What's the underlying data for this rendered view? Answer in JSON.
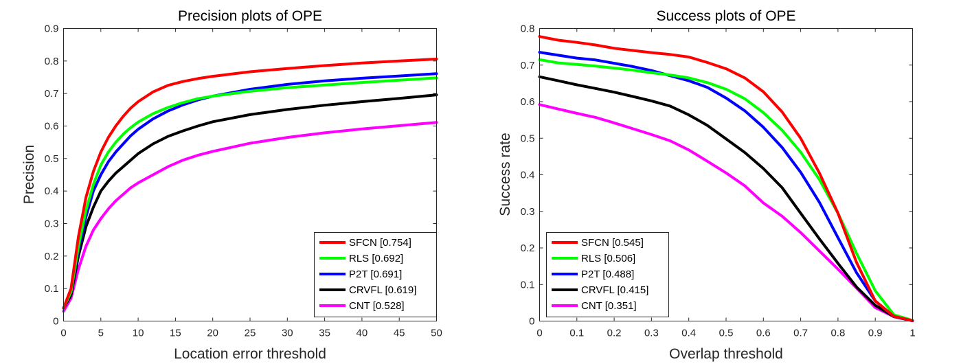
{
  "chart_data": [
    {
      "type": "line",
      "title": "Precision plots of OPE",
      "xlabel": "Location error threshold",
      "ylabel": "Precision",
      "xlim": [
        0,
        50
      ],
      "ylim": [
        0,
        0.9
      ],
      "xticks": [
        0,
        5,
        10,
        15,
        20,
        25,
        30,
        35,
        40,
        45,
        50
      ],
      "yticks": [
        0,
        0.1,
        0.2,
        0.3,
        0.4,
        0.5,
        0.6,
        0.7,
        0.8,
        0.9
      ],
      "xtick_labels": [
        "0",
        "5",
        "10",
        "15",
        "20",
        "25",
        "30",
        "35",
        "40",
        "45",
        "50"
      ],
      "ytick_labels": [
        "0",
        "0.1",
        "0.2",
        "0.3",
        "0.4",
        "0.5",
        "0.6",
        "0.7",
        "0.8",
        "0.9"
      ],
      "grid": false,
      "legend_position": "bottom-right",
      "x": [
        0,
        1,
        2,
        3,
        4,
        5,
        6,
        7,
        8,
        9,
        10,
        12,
        14,
        16,
        18,
        20,
        25,
        30,
        35,
        40,
        45,
        50
      ],
      "series": [
        {
          "name": "SFCN [0.754]",
          "color": "#ff0000",
          "values": [
            0.04,
            0.1,
            0.26,
            0.38,
            0.46,
            0.52,
            0.565,
            0.6,
            0.63,
            0.655,
            0.675,
            0.705,
            0.725,
            0.737,
            0.746,
            0.753,
            0.767,
            0.777,
            0.786,
            0.794,
            0.8,
            0.806
          ]
        },
        {
          "name": "RLS [0.692]",
          "color": "#00ff00",
          "values": [
            0.04,
            0.09,
            0.23,
            0.34,
            0.42,
            0.48,
            0.52,
            0.55,
            0.575,
            0.595,
            0.612,
            0.638,
            0.657,
            0.672,
            0.684,
            0.692,
            0.707,
            0.718,
            0.726,
            0.734,
            0.741,
            0.748
          ]
        },
        {
          "name": "P2T [0.691]",
          "color": "#0000ff",
          "values": [
            0.04,
            0.09,
            0.22,
            0.32,
            0.4,
            0.45,
            0.49,
            0.52,
            0.545,
            0.57,
            0.59,
            0.622,
            0.646,
            0.665,
            0.68,
            0.692,
            0.713,
            0.728,
            0.739,
            0.747,
            0.754,
            0.761
          ]
        },
        {
          "name": "CRVFL [0.619]",
          "color": "#000000",
          "values": [
            0.04,
            0.08,
            0.2,
            0.29,
            0.35,
            0.4,
            0.43,
            0.455,
            0.475,
            0.495,
            0.515,
            0.545,
            0.568,
            0.585,
            0.6,
            0.613,
            0.635,
            0.651,
            0.664,
            0.675,
            0.685,
            0.696
          ]
        },
        {
          "name": "CNT [0.528]",
          "color": "#ff00ff",
          "values": [
            0.03,
            0.07,
            0.16,
            0.23,
            0.28,
            0.315,
            0.345,
            0.37,
            0.39,
            0.41,
            0.425,
            0.45,
            0.475,
            0.495,
            0.51,
            0.522,
            0.547,
            0.565,
            0.579,
            0.591,
            0.601,
            0.611
          ]
        }
      ]
    },
    {
      "type": "line",
      "title": "Success plots of OPE",
      "xlabel": "Overlap threshold",
      "ylabel": "Success rate",
      "xlim": [
        0,
        1
      ],
      "ylim": [
        0,
        0.8
      ],
      "xticks": [
        0,
        0.1,
        0.2,
        0.3,
        0.4,
        0.5,
        0.6,
        0.7,
        0.8,
        0.9,
        1
      ],
      "yticks": [
        0,
        0.1,
        0.2,
        0.3,
        0.4,
        0.5,
        0.6,
        0.7,
        0.8
      ],
      "xtick_labels": [
        "0",
        "0.1",
        "0.2",
        "0.3",
        "0.4",
        "0.5",
        "0.6",
        "0.7",
        "0.8",
        "0.9",
        "1"
      ],
      "ytick_labels": [
        "0",
        "0.1",
        "0.2",
        "0.3",
        "0.4",
        "0.5",
        "0.6",
        "0.7",
        "0.8"
      ],
      "grid": false,
      "legend_position": "bottom-left",
      "x": [
        0,
        0.05,
        0.1,
        0.15,
        0.2,
        0.25,
        0.3,
        0.35,
        0.4,
        0.45,
        0.5,
        0.55,
        0.6,
        0.65,
        0.7,
        0.75,
        0.8,
        0.85,
        0.9,
        0.95,
        1.0
      ],
      "series": [
        {
          "name": "SFCN [0.545]",
          "color": "#ff0000",
          "values": [
            0.778,
            0.768,
            0.762,
            0.755,
            0.746,
            0.74,
            0.734,
            0.729,
            0.722,
            0.707,
            0.69,
            0.665,
            0.627,
            0.572,
            0.5,
            0.405,
            0.295,
            0.16,
            0.055,
            0.013,
            0.001
          ]
        },
        {
          "name": "RLS [0.506]",
          "color": "#00ff00",
          "values": [
            0.715,
            0.706,
            0.702,
            0.697,
            0.692,
            0.686,
            0.679,
            0.673,
            0.665,
            0.652,
            0.634,
            0.608,
            0.57,
            0.522,
            0.462,
            0.387,
            0.295,
            0.185,
            0.083,
            0.017,
            0.002
          ]
        },
        {
          "name": "P2T [0.488]",
          "color": "#0000ff",
          "values": [
            0.735,
            0.727,
            0.719,
            0.714,
            0.705,
            0.696,
            0.685,
            0.671,
            0.657,
            0.639,
            0.61,
            0.575,
            0.53,
            0.475,
            0.407,
            0.325,
            0.228,
            0.132,
            0.055,
            0.012,
            0.001
          ]
        },
        {
          "name": "CRVFL [0.415]",
          "color": "#000000",
          "values": [
            0.668,
            0.657,
            0.646,
            0.636,
            0.626,
            0.614,
            0.602,
            0.588,
            0.564,
            0.535,
            0.498,
            0.461,
            0.417,
            0.365,
            0.295,
            0.225,
            0.158,
            0.093,
            0.043,
            0.012,
            0.001
          ]
        },
        {
          "name": "CNT [0.351]",
          "color": "#ff00ff",
          "values": [
            0.592,
            0.58,
            0.568,
            0.557,
            0.542,
            0.526,
            0.51,
            0.493,
            0.468,
            0.437,
            0.405,
            0.37,
            0.323,
            0.287,
            0.242,
            0.192,
            0.142,
            0.09,
            0.037,
            0.012,
            0.001
          ]
        }
      ]
    }
  ]
}
